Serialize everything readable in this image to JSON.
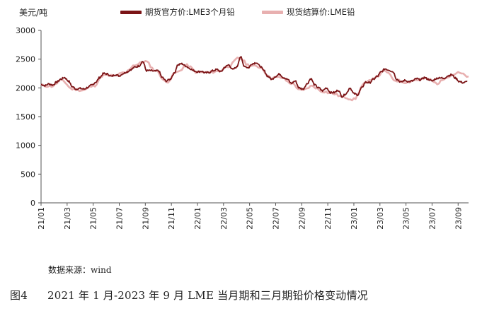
{
  "chart_data": {
    "type": "line",
    "ylabel": "美元/吨",
    "ylim": [
      0,
      3000
    ],
    "yticks": [
      0,
      500,
      1000,
      1500,
      2000,
      2500,
      3000
    ],
    "grid": false,
    "legend_position": "top",
    "x_tick_labels": [
      "21/01",
      "21/03",
      "21/05",
      "21/07",
      "21/09",
      "21/11",
      "22/01",
      "22/03",
      "22/05",
      "22/07",
      "22/09",
      "22/11",
      "23/01",
      "23/03",
      "23/05",
      "23/07",
      "23/09"
    ],
    "x_range_months": [
      0,
      32.8
    ],
    "series": [
      {
        "name": "期货官方价:LME3个月铅",
        "color": "#7b1416",
        "x": [
          0,
          0.3,
          0.6,
          0.9,
          1.2,
          1.5,
          1.8,
          2.1,
          2.4,
          2.7,
          3.0,
          3.3,
          3.6,
          3.9,
          4.2,
          4.5,
          4.8,
          5.1,
          5.4,
          5.7,
          6.0,
          6.3,
          6.6,
          6.9,
          7.2,
          7.5,
          7.8,
          8.1,
          8.4,
          8.7,
          9.0,
          9.3,
          9.6,
          9.9,
          10.2,
          10.5,
          10.8,
          11.1,
          11.4,
          11.7,
          12.0,
          12.3,
          12.6,
          12.9,
          13.2,
          13.5,
          13.8,
          14.1,
          14.4,
          14.7,
          15.0,
          15.3,
          15.6,
          15.9,
          16.2,
          16.5,
          16.8,
          17.1,
          17.4,
          17.7,
          18.0,
          18.3,
          18.6,
          18.9,
          19.2,
          19.5,
          19.8,
          20.1,
          20.4,
          20.7,
          21.0,
          21.3,
          21.6,
          21.9,
          22.2,
          22.5,
          22.8,
          23.1,
          23.4,
          23.7,
          24.0,
          24.3,
          24.6,
          24.9,
          25.2,
          25.5,
          25.8,
          26.1,
          26.4,
          26.7,
          27.0,
          27.3,
          27.6,
          27.9,
          28.2,
          28.5,
          28.8,
          29.1,
          29.4,
          29.7,
          30.0,
          30.3,
          30.6,
          30.9,
          31.2,
          31.5,
          31.8,
          32.1,
          32.4,
          32.7
        ],
        "y": [
          2060,
          2040,
          2070,
          2050,
          2100,
          2150,
          2180,
          2120,
          2020,
          1980,
          1990,
          1980,
          2010,
          2050,
          2100,
          2180,
          2250,
          2240,
          2200,
          2230,
          2210,
          2250,
          2280,
          2320,
          2360,
          2380,
          2460,
          2300,
          2300,
          2290,
          2300,
          2180,
          2120,
          2150,
          2250,
          2400,
          2420,
          2380,
          2340,
          2300,
          2280,
          2290,
          2260,
          2270,
          2300,
          2320,
          2280,
          2360,
          2400,
          2320,
          2360,
          2540,
          2380,
          2350,
          2420,
          2440,
          2380,
          2300,
          2200,
          2150,
          2200,
          2240,
          2180,
          2150,
          2080,
          2120,
          2000,
          1980,
          2070,
          2160,
          2050,
          2000,
          1950,
          2000,
          1920,
          1920,
          1960,
          1850,
          1900,
          2000,
          1900,
          1880,
          2000,
          2100,
          2090,
          2150,
          2200,
          2280,
          2330,
          2310,
          2280,
          2150,
          2100,
          2130,
          2110,
          2120,
          2160,
          2140,
          2180,
          2150,
          2120,
          2160,
          2180,
          2160,
          2210,
          2230,
          2170,
          2110,
          2090,
          2110
        ],
        "x2": [
          0,
          0.8,
          1.6,
          2.4,
          3.2,
          4.0,
          4.8,
          5.6,
          6.4,
          7.2,
          8.0,
          8.8,
          9.6,
          10.4,
          11.2,
          12.0,
          12.8,
          13.6,
          14.4,
          15.2,
          16.0,
          16.8,
          17.6,
          18.4,
          19.2,
          20.0,
          20.8,
          21.6,
          22.4,
          23.2,
          24.0,
          24.8,
          25.6,
          26.4,
          27.2,
          28.0,
          28.8,
          29.6,
          30.4,
          31.2,
          32.0,
          32.8
        ],
        "y2": [
          2060,
          2060,
          2160,
          2000,
          1980,
          2050,
          2240,
          2220,
          2270,
          2380,
          2300,
          2280,
          2130,
          2280,
          2400,
          2280,
          2280,
          2300,
          2400,
          2560,
          2400,
          2380,
          2200,
          2200,
          2100,
          1970,
          2060,
          1970,
          1940,
          1900,
          1880,
          2100,
          2200,
          2320,
          2150,
          2120,
          2160,
          2180,
          2100,
          2200,
          2210,
          2160
        ]
      },
      {
        "name": "现货结算价:LME铅",
        "color": "#e8b0b0",
        "x": [
          0,
          0.8,
          1.6,
          2.4,
          3.2,
          4.0,
          4.8,
          5.6,
          6.4,
          7.2,
          8.0,
          8.8,
          9.6,
          10.4,
          11.2,
          12.0,
          12.8,
          13.6,
          14.4,
          15.2,
          16.0,
          16.8,
          17.6,
          18.4,
          19.2,
          20.0,
          20.8,
          21.6,
          22.4,
          23.2,
          24.0,
          24.8,
          25.6,
          26.4,
          27.2,
          28.0,
          28.8,
          29.6,
          30.4,
          31.2,
          32.0,
          32.8
        ],
        "y": [
          2040,
          2030,
          2130,
          1980,
          1960,
          2030,
          2220,
          2210,
          2260,
          2400,
          2460,
          2300,
          2100,
          2270,
          2390,
          2270,
          2270,
          2290,
          2380,
          2520,
          2390,
          2360,
          2180,
          2180,
          2080,
          1950,
          2030,
          1940,
          1900,
          1840,
          1800,
          2070,
          2180,
          2290,
          2130,
          2100,
          2140,
          2160,
          2080,
          2200,
          2260,
          2200
        ]
      }
    ]
  },
  "legend": [
    {
      "label": "期货官方价:LME3个月铅",
      "color": "#7b1416"
    },
    {
      "label": "现货结算价:LME铅",
      "color": "#e8b0b0"
    }
  ],
  "source_text": "数据来源：wind",
  "caption": {
    "number": "图4",
    "text": "2021 年 1 月-2023 年 9 月 LME 当月期和三月期铅价格变动情况"
  }
}
